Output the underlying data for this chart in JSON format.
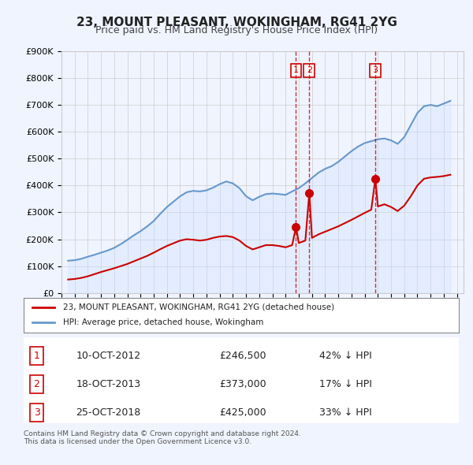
{
  "title": "23, MOUNT PLEASANT, WOKINGHAM, RG41 2YG",
  "subtitle": "Price paid vs. HM Land Registry's House Price Index (HPI)",
  "ylim": [
    0,
    900000
  ],
  "yticks": [
    0,
    100000,
    200000,
    300000,
    400000,
    500000,
    600000,
    700000,
    800000,
    900000
  ],
  "ytick_labels": [
    "£0",
    "£100K",
    "£200K",
    "£300K",
    "£400K",
    "£500K",
    "£600K",
    "£700K",
    "£800K",
    "£900K"
  ],
  "xlim_start": 1995.0,
  "xlim_end": 2025.5,
  "price_paid_color": "#cc0000",
  "hpi_color": "#6699cc",
  "hpi_fill_color": "#cce0ff",
  "background_color": "#f0f4ff",
  "plot_bg_color": "#ffffff",
  "grid_color": "#cccccc",
  "vline_color": "#cc0000",
  "transactions": [
    {
      "date_num": 2012.79,
      "price": 246500,
      "label": "1"
    },
    {
      "date_num": 2013.8,
      "price": 373000,
      "label": "2"
    },
    {
      "date_num": 2018.81,
      "price": 425000,
      "label": "3"
    }
  ],
  "legend_entries": [
    {
      "label": "23, MOUNT PLEASANT, WOKINGHAM, RG41 2YG (detached house)",
      "color": "#cc0000"
    },
    {
      "label": "HPI: Average price, detached house, Wokingham",
      "color": "#6699cc"
    }
  ],
  "table_rows": [
    {
      "num": "1",
      "date": "10-OCT-2012",
      "price": "£246,500",
      "hpi": "42% ↓ HPI"
    },
    {
      "num": "2",
      "date": "18-OCT-2013",
      "price": "£373,000",
      "hpi": "17% ↓ HPI"
    },
    {
      "num": "3",
      "date": "25-OCT-2018",
      "price": "£425,000",
      "hpi": "33% ↓ HPI"
    }
  ],
  "footer": [
    "Contains HM Land Registry data © Crown copyright and database right 2024.",
    "This data is licensed under the Open Government Licence v3.0."
  ],
  "hpi_data": {
    "years": [
      1995.5,
      1996.0,
      1996.5,
      1997.0,
      1997.5,
      1998.0,
      1998.5,
      1999.0,
      1999.5,
      2000.0,
      2000.5,
      2001.0,
      2001.5,
      2002.0,
      2002.5,
      2003.0,
      2003.5,
      2004.0,
      2004.5,
      2005.0,
      2005.5,
      2006.0,
      2006.5,
      2007.0,
      2007.5,
      2008.0,
      2008.5,
      2009.0,
      2009.5,
      2010.0,
      2010.5,
      2011.0,
      2011.5,
      2012.0,
      2012.5,
      2013.0,
      2013.5,
      2014.0,
      2014.5,
      2015.0,
      2015.5,
      2016.0,
      2016.5,
      2017.0,
      2017.5,
      2018.0,
      2018.5,
      2019.0,
      2019.5,
      2020.0,
      2020.5,
      2021.0,
      2021.5,
      2022.0,
      2022.5,
      2023.0,
      2023.5,
      2024.0,
      2024.5
    ],
    "values": [
      120000,
      122000,
      127000,
      135000,
      142000,
      150000,
      158000,
      168000,
      182000,
      198000,
      215000,
      230000,
      248000,
      268000,
      295000,
      320000,
      340000,
      360000,
      375000,
      380000,
      378000,
      382000,
      392000,
      405000,
      415000,
      408000,
      390000,
      360000,
      345000,
      358000,
      368000,
      370000,
      368000,
      365000,
      378000,
      390000,
      408000,
      428000,
      448000,
      462000,
      472000,
      488000,
      508000,
      528000,
      545000,
      558000,
      565000,
      572000,
      575000,
      568000,
      555000,
      580000,
      625000,
      670000,
      695000,
      700000,
      695000,
      705000,
      715000
    ]
  },
  "price_paid_data": {
    "years": [
      1995.5,
      1996.0,
      1996.5,
      1997.0,
      1997.5,
      1998.0,
      1998.5,
      1999.0,
      1999.5,
      2000.0,
      2000.5,
      2001.0,
      2001.5,
      2002.0,
      2002.5,
      2003.0,
      2003.5,
      2004.0,
      2004.5,
      2005.0,
      2005.5,
      2006.0,
      2006.5,
      2007.0,
      2007.5,
      2008.0,
      2008.5,
      2009.0,
      2009.5,
      2010.0,
      2010.5,
      2011.0,
      2011.5,
      2012.0,
      2012.5,
      2012.79,
      2013.0,
      2013.5,
      2013.8,
      2014.0,
      2014.5,
      2015.0,
      2015.5,
      2016.0,
      2016.5,
      2017.0,
      2017.5,
      2018.0,
      2018.5,
      2018.81,
      2019.0,
      2019.5,
      2020.0,
      2020.5,
      2021.0,
      2021.5,
      2022.0,
      2022.5,
      2023.0,
      2023.5,
      2024.0,
      2024.5
    ],
    "values": [
      50000,
      52000,
      56000,
      62000,
      70000,
      78000,
      85000,
      92000,
      100000,
      108000,
      118000,
      128000,
      138000,
      150000,
      163000,
      175000,
      185000,
      195000,
      200000,
      198000,
      195000,
      198000,
      205000,
      210000,
      212000,
      208000,
      195000,
      175000,
      162000,
      170000,
      178000,
      178000,
      175000,
      170000,
      178000,
      246500,
      186000,
      195000,
      373000,
      205000,
      218000,
      228000,
      238000,
      248000,
      260000,
      272000,
      285000,
      298000,
      310000,
      425000,
      322000,
      330000,
      320000,
      305000,
      325000,
      360000,
      400000,
      425000,
      430000,
      432000,
      435000,
      440000
    ]
  }
}
